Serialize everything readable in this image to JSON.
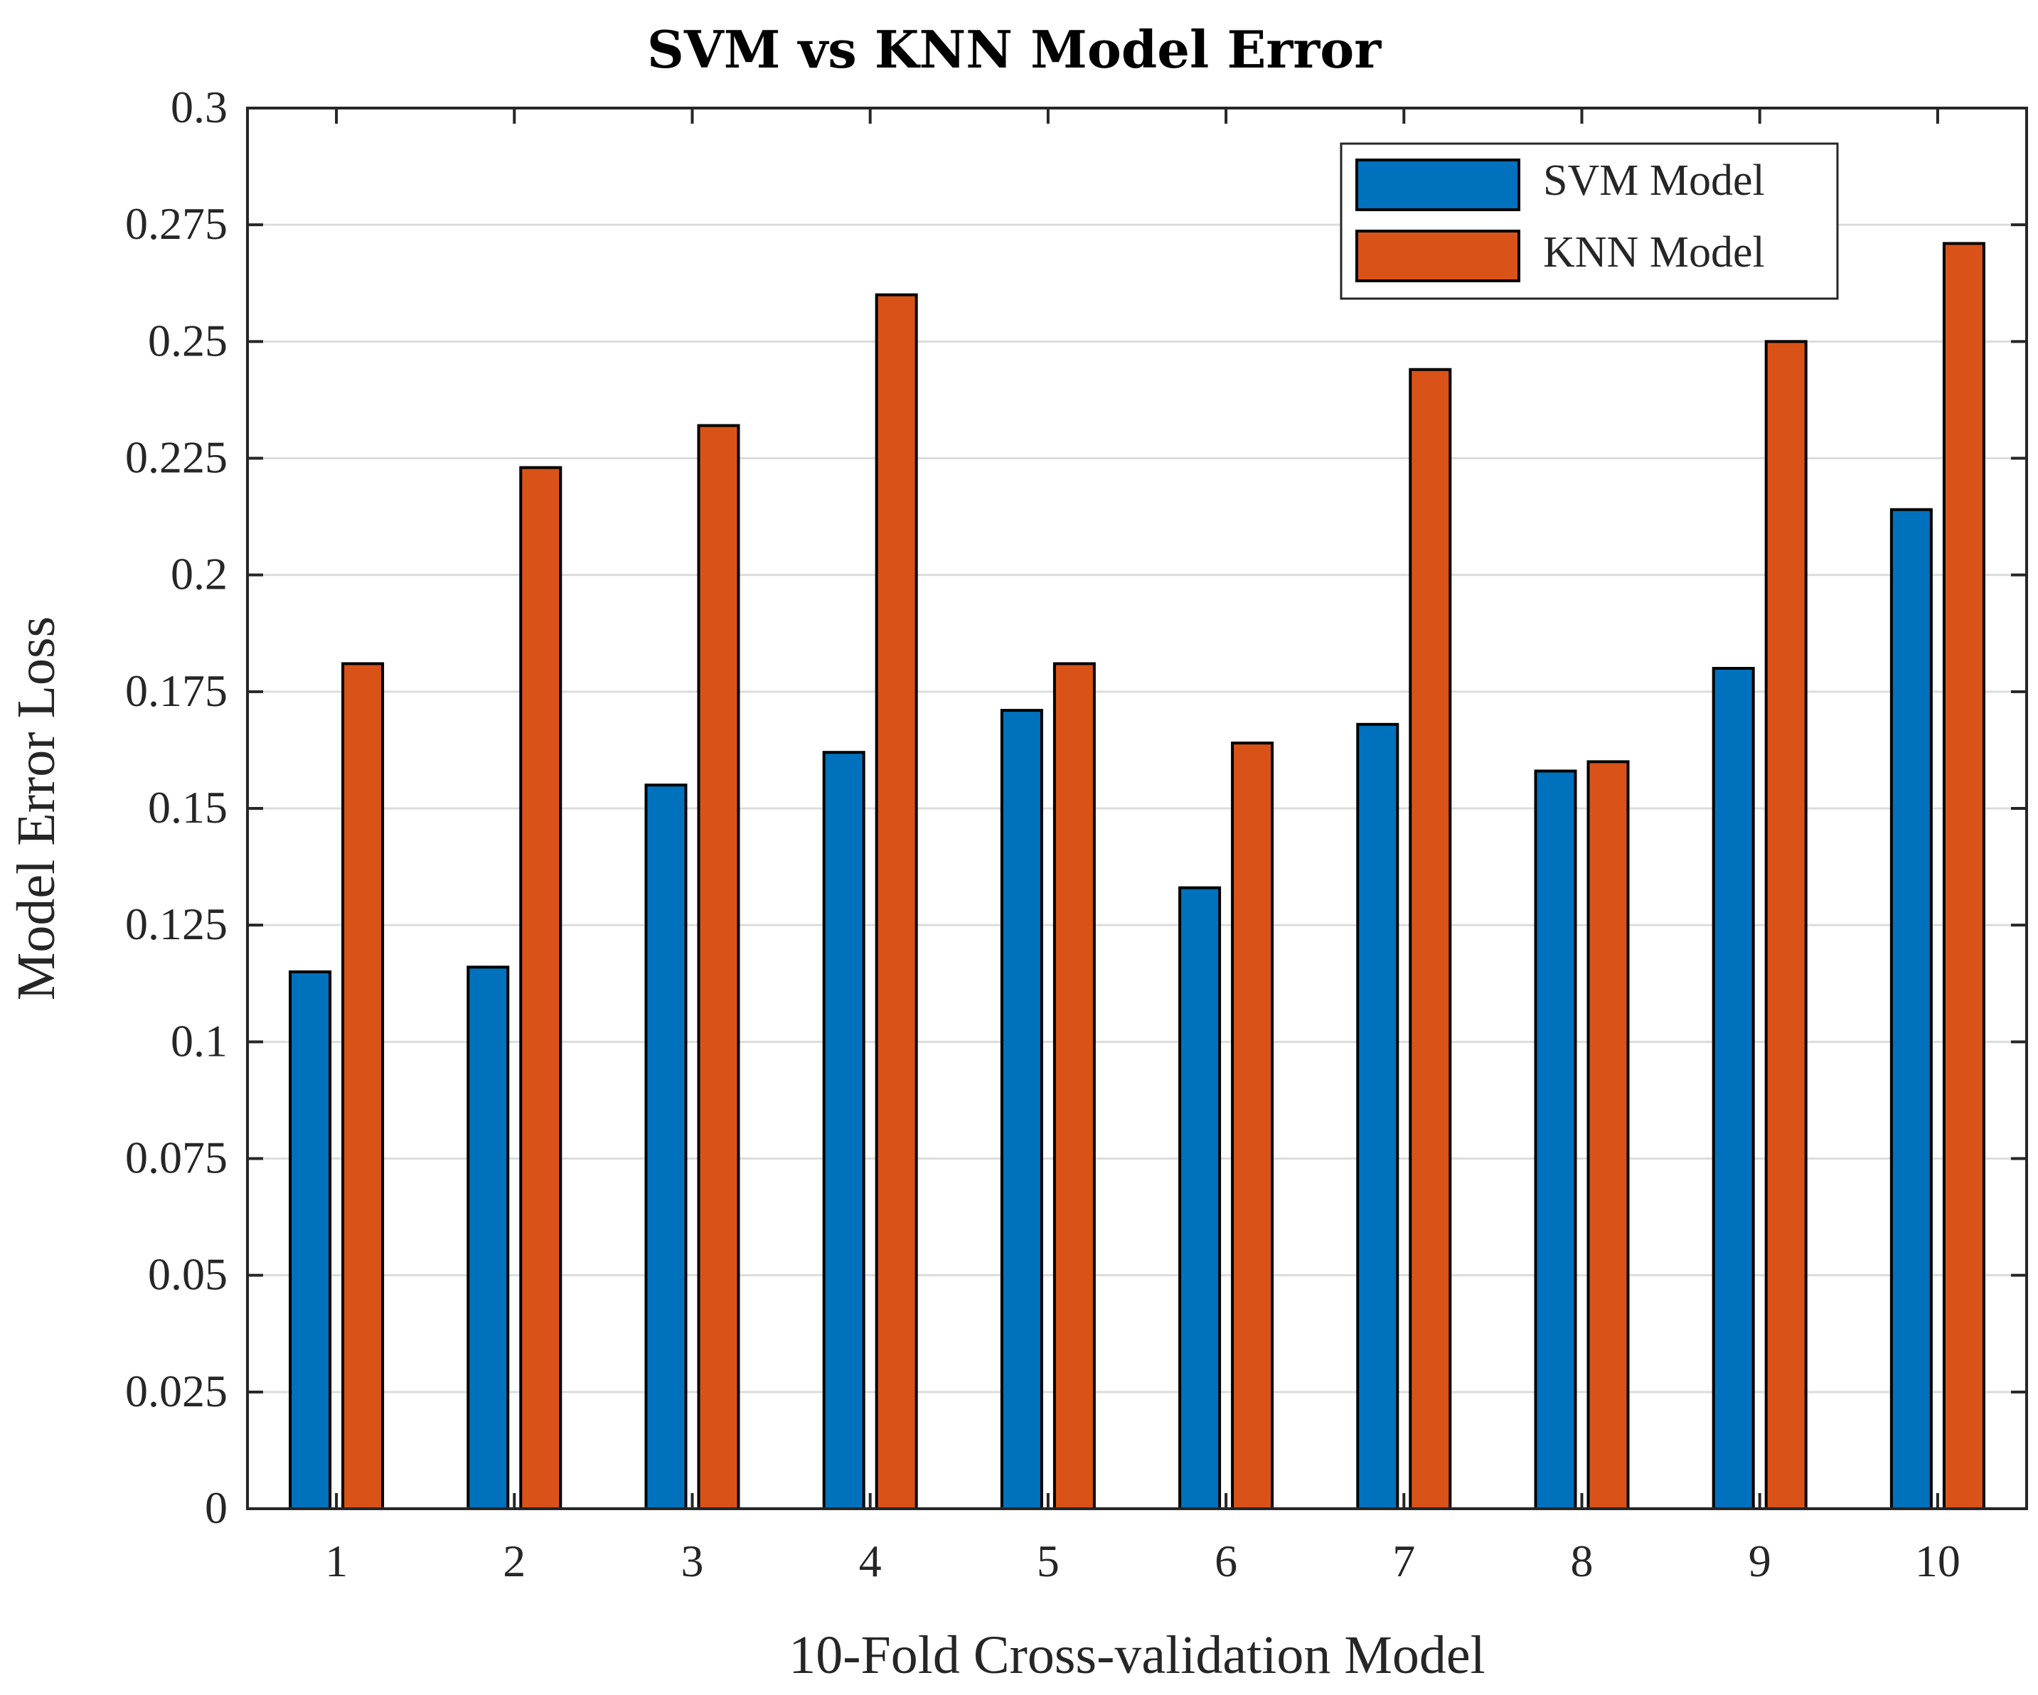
{
  "chart_data": {
    "type": "bar",
    "title": "SVM vs KNN Model Error",
    "xlabel": "10-Fold Cross-validation Model",
    "ylabel": "Model Error Loss",
    "categories": [
      "1",
      "2",
      "3",
      "4",
      "5",
      "6",
      "7",
      "8",
      "9",
      "10"
    ],
    "series": [
      {
        "name": "SVM Model",
        "color": "#0072BD",
        "values": [
          0.115,
          0.116,
          0.155,
          0.162,
          0.171,
          0.133,
          0.168,
          0.158,
          0.18,
          0.214
        ]
      },
      {
        "name": "KNN Model",
        "color": "#D95319",
        "values": [
          0.181,
          0.223,
          0.232,
          0.26,
          0.181,
          0.164,
          0.244,
          0.16,
          0.25,
          0.271
        ]
      }
    ],
    "ylim": [
      0,
      0.3
    ],
    "yticks": [
      "0",
      "0.025",
      "0.05",
      "0.075",
      "0.1",
      "0.125",
      "0.15",
      "0.175",
      "0.2",
      "0.225",
      "0.25",
      "0.275",
      "0.3"
    ],
    "grid": "horizontal",
    "legend_position": "top-right"
  }
}
